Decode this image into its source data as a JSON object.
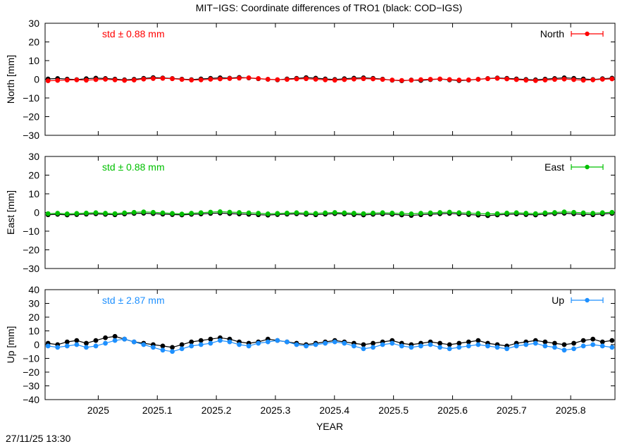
{
  "title": "MIT−IGS: Coordinate differences of TRO1 (black: COD−IGS)",
  "timestamp": "27/11/25 13:30",
  "chart_data": {
    "type": "scatter",
    "xlabel": "YEAR",
    "xlim": [
      2024.91,
      2025.875
    ],
    "xticks": [
      2025,
      2025.1,
      2025.2,
      2025.3,
      2025.4,
      2025.5,
      2025.6,
      2025.7,
      2025.8
    ],
    "xtick_labels": [
      "2025",
      "2025.1",
      "2025.2",
      "2025.3",
      "2025.4",
      "2025.5",
      "2025.6",
      "2025.7",
      "2025.8"
    ],
    "panels": [
      {
        "name": "North",
        "ylabel": "North [mm]",
        "ylim": [
          -30,
          30
        ],
        "yticks": [
          -30,
          -20,
          -10,
          0,
          10,
          20,
          30
        ],
        "ytick_labels": [
          "−30",
          "−20",
          "−10",
          "0",
          "10",
          "20",
          "30"
        ],
        "std_label": "std ± 0.88 mm",
        "color": "#ff0000",
        "legend_label": "North",
        "series": [
          {
            "name": "MIT−IGS",
            "color": "#ff0000",
            "values": [
              -0.8,
              -0.6,
              -0.4,
              -0.3,
              -0.5,
              -0.2,
              0.0,
              -0.3,
              -0.6,
              -0.4,
              0.1,
              0.4,
              0.5,
              0.3,
              -0.1,
              -0.4,
              -0.3,
              0.0,
              0.2,
              0.4,
              0.6,
              0.8,
              0.4,
              0.0,
              -0.2,
              -0.1,
              0.2,
              0.3,
              0.0,
              -0.3,
              -0.5,
              -0.2,
              0.1,
              0.3,
              0.2,
              -0.1,
              -0.4,
              -0.6,
              -0.5,
              -0.2,
              0.0,
              0.2,
              -0.1,
              -0.4,
              -0.3,
              0.0,
              0.3,
              0.5,
              0.2,
              -0.2,
              -0.5,
              -0.7,
              -0.4,
              -0.1,
              0.1,
              -0.2,
              -0.5,
              -0.3,
              0.0,
              0.2
            ]
          },
          {
            "name": "COD−IGS",
            "color": "#000000",
            "values": [
              0.2,
              0.4,
              0.1,
              -0.2,
              0.3,
              0.6,
              0.4,
              0.1,
              -0.3,
              0.0,
              0.5,
              0.9,
              0.7,
              0.4,
              0.1,
              -0.2,
              0.2,
              0.5,
              0.8,
              0.6,
              1.0,
              0.7,
              0.3,
              0.0,
              -0.3,
              0.2,
              0.5,
              0.9,
              0.6,
              0.2,
              -0.1,
              0.3,
              0.6,
              0.8,
              0.5,
              0.1,
              -0.5,
              -0.8,
              -0.4,
              -0.6,
              -0.2,
              0.1,
              -0.3,
              -0.7,
              -0.4,
              0.0,
              0.4,
              0.7,
              0.5,
              0.2,
              -0.1,
              -0.3,
              0.1,
              0.4,
              0.8,
              0.5,
              0.2,
              -0.1,
              0.3,
              0.6
            ]
          }
        ]
      },
      {
        "name": "East",
        "ylabel": "East [mm]",
        "ylim": [
          -30,
          30
        ],
        "yticks": [
          -30,
          -20,
          -10,
          0,
          10,
          20,
          30
        ],
        "ytick_labels": [
          "−30",
          "−20",
          "−10",
          "0",
          "10",
          "20",
          "30"
        ],
        "std_label": "std ± 0.88 mm",
        "color": "#00c000",
        "legend_label": "East",
        "series": [
          {
            "name": "MIT−IGS",
            "color": "#00c000",
            "values": [
              -0.6,
              -0.4,
              -0.7,
              -0.5,
              -0.3,
              -0.1,
              -0.4,
              -0.6,
              -0.2,
              0.1,
              0.3,
              0.1,
              -0.2,
              -0.5,
              -0.8,
              -0.4,
              -0.1,
              0.2,
              0.4,
              0.2,
              0.0,
              -0.2,
              -0.4,
              -0.7,
              -0.5,
              -0.3,
              -0.1,
              -0.3,
              -0.5,
              -0.2,
              0.0,
              -0.2,
              -0.4,
              -0.6,
              -0.3,
              -0.1,
              -0.3,
              -0.5,
              -0.7,
              -0.4,
              -0.2,
              0.0,
              0.2,
              -0.1,
              -0.3,
              -0.5,
              -0.8,
              -0.6,
              -0.3,
              -0.1,
              -0.4,
              -0.6,
              -0.2,
              0.0,
              0.3,
              0.1,
              -0.2,
              -0.4,
              -0.1,
              0.1
            ]
          },
          {
            "name": "COD−IGS",
            "color": "#000000",
            "values": [
              -1.2,
              -1.0,
              -1.3,
              -1.1,
              -0.9,
              -0.7,
              -1.0,
              -1.2,
              -0.8,
              -0.5,
              -0.4,
              -0.6,
              -0.9,
              -1.1,
              -1.3,
              -1.0,
              -0.8,
              -0.5,
              -0.3,
              -0.6,
              -0.8,
              -1.0,
              -1.2,
              -1.4,
              -1.1,
              -0.9,
              -0.7,
              -1.0,
              -1.2,
              -0.9,
              -0.6,
              -0.8,
              -1.1,
              -1.3,
              -1.0,
              -0.8,
              -1.0,
              -1.3,
              -1.6,
              -1.2,
              -0.9,
              -0.7,
              -0.5,
              -0.8,
              -1.1,
              -1.4,
              -1.7,
              -1.3,
              -1.0,
              -0.8,
              -1.1,
              -1.3,
              -0.9,
              -0.6,
              -0.4,
              -0.7,
              -1.0,
              -1.2,
              -0.8,
              -0.5
            ]
          }
        ]
      },
      {
        "name": "Up",
        "ylabel": "Up [mm]",
        "ylim": [
          -40,
          40
        ],
        "yticks": [
          -40,
          -30,
          -20,
          -10,
          0,
          10,
          20,
          30,
          40
        ],
        "ytick_labels": [
          "−40",
          "−30",
          "−20",
          "−10",
          "0",
          "10",
          "20",
          "30",
          "40"
        ],
        "std_label": "std ± 2.87 mm",
        "color": "#1e90ff",
        "legend_label": "Up",
        "series": [
          {
            "name": "MIT−IGS",
            "color": "#1e90ff",
            "values": [
              -1,
              -2,
              -1,
              0,
              -2,
              -1,
              1,
              3,
              4,
              2,
              0,
              -2,
              -4,
              -5,
              -3,
              -1,
              0,
              1,
              3,
              2,
              0,
              -1,
              1,
              2,
              3,
              2,
              0,
              -1,
              0,
              1,
              2,
              1,
              -1,
              -3,
              -2,
              0,
              1,
              -1,
              -2,
              -1,
              0,
              -2,
              -3,
              -2,
              -1,
              0,
              -1,
              -2,
              -3,
              -1,
              0,
              1,
              -1,
              -2,
              -4,
              -3,
              -1,
              0,
              -1,
              -2
            ]
          },
          {
            "name": "COD−IGS",
            "color": "#000000",
            "values": [
              1,
              0,
              2,
              3,
              1,
              3,
              5,
              6,
              4,
              2,
              1,
              0,
              -1,
              -2,
              0,
              2,
              3,
              4,
              5,
              4,
              2,
              1,
              2,
              4,
              3,
              2,
              1,
              0,
              1,
              2,
              3,
              2,
              1,
              0,
              1,
              2,
              3,
              1,
              0,
              1,
              2,
              1,
              0,
              1,
              2,
              3,
              1,
              0,
              -1,
              1,
              2,
              3,
              2,
              1,
              0,
              1,
              3,
              4,
              2,
              3
            ]
          }
        ]
      }
    ]
  }
}
